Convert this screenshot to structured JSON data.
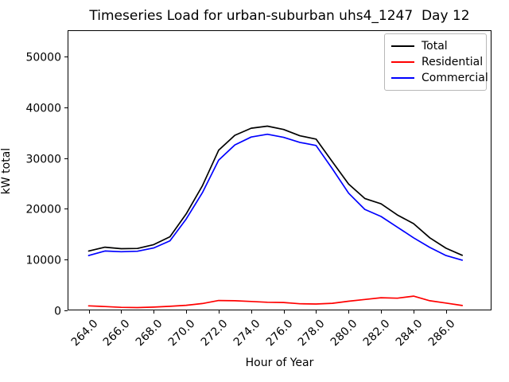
{
  "figure": {
    "title": "Timeseries Load for urban-suburban uhs4_1247  Day 12",
    "xlabel": "Hour of Year",
    "ylabel": "kW total"
  },
  "chart_data": {
    "type": "line",
    "title": "Timeseries Load for urban-suburban uhs4_1247  Day 12",
    "xlabel": "Hour of Year",
    "ylabel": "kW total",
    "x": [
      264,
      265,
      266,
      267,
      268,
      269,
      270,
      271,
      272,
      273,
      274,
      275,
      276,
      277,
      278,
      279,
      280,
      281,
      282,
      283,
      284,
      285,
      286,
      287
    ],
    "series": [
      {
        "name": "Total",
        "color": "#000000",
        "values": [
          11700,
          12450,
          12150,
          12200,
          12950,
          14500,
          19000,
          24550,
          31550,
          34500,
          35900,
          36300,
          35650,
          34400,
          33750,
          29300,
          24900,
          22050,
          21000,
          18800,
          17100,
          14300,
          12250,
          10850
        ]
      },
      {
        "name": "Residential",
        "color": "#ff0000",
        "values": [
          900,
          750,
          600,
          550,
          650,
          800,
          1000,
          1350,
          1950,
          1900,
          1750,
          1600,
          1550,
          1300,
          1250,
          1400,
          1800,
          2150,
          2500,
          2400,
          2800,
          1900,
          1450,
          950
        ]
      },
      {
        "name": "Commercial",
        "color": "#0000ff",
        "values": [
          10800,
          11700,
          11550,
          11650,
          12300,
          13700,
          18000,
          23200,
          29600,
          32600,
          34150,
          34700,
          34100,
          33100,
          32500,
          27900,
          23100,
          19900,
          18500,
          16400,
          14300,
          12400,
          10800,
          9900
        ]
      }
    ],
    "xlim": [
      262.7,
      288.8
    ],
    "ylim": [
      0,
      55200
    ],
    "xticks": [
      264,
      266,
      268,
      270,
      272,
      274,
      276,
      278,
      280,
      282,
      284,
      286
    ],
    "xtick_labels": [
      "264.0",
      "266.0",
      "268.0",
      "270.0",
      "272.0",
      "274.0",
      "276.0",
      "278.0",
      "280.0",
      "282.0",
      "284.0",
      "286.0"
    ],
    "yticks": [
      0,
      10000,
      20000,
      30000,
      40000,
      50000
    ],
    "ytick_labels": [
      "0",
      "10000",
      "20000",
      "30000",
      "40000",
      "50000"
    ],
    "xtick_rotation_deg": 45,
    "grid": false,
    "legend": {
      "position": "upper right",
      "entries": [
        "Total",
        "Residential",
        "Commercial"
      ]
    }
  }
}
